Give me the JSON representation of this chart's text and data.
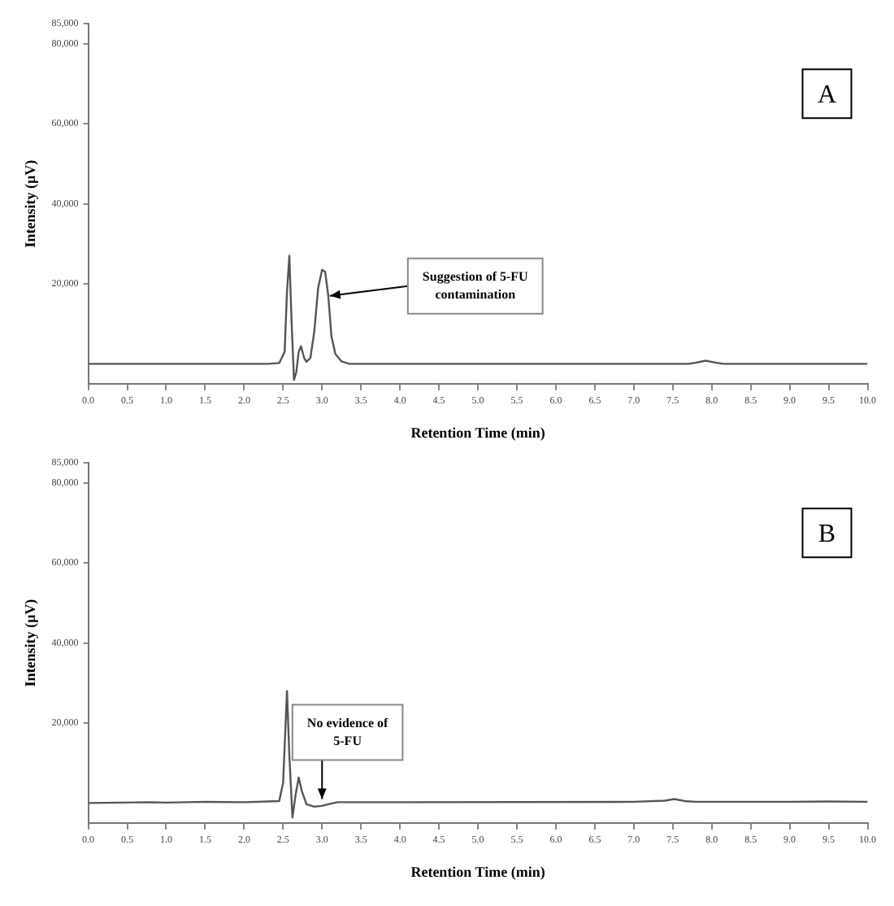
{
  "chart_data": [
    {
      "type": "line",
      "xlabel": "Retention Time (min)",
      "ylabel": "Intensity (µV)",
      "xlim": [
        0,
        10
      ],
      "ylim": [
        -5000,
        85000
      ],
      "xticks": [
        {
          "value": 0,
          "label": "0.0"
        },
        {
          "value": 0.5,
          "label": "0.5"
        },
        {
          "value": 1,
          "label": "1.0"
        },
        {
          "value": 1.5,
          "label": "1.5"
        },
        {
          "value": 2,
          "label": "2.0"
        },
        {
          "value": 2.5,
          "label": "2.5"
        },
        {
          "value": 3,
          "label": "3.0"
        },
        {
          "value": 3.5,
          "label": "3.5"
        },
        {
          "value": 4,
          "label": "4.0"
        },
        {
          "value": 4.5,
          "label": "4.5"
        },
        {
          "value": 5,
          "label": "5.0"
        },
        {
          "value": 5.5,
          "label": "5.5"
        },
        {
          "value": 6,
          "label": "6.0"
        },
        {
          "value": 6.5,
          "label": "6.5"
        },
        {
          "value": 7,
          "label": "7.0"
        },
        {
          "value": 7.5,
          "label": "7.5"
        },
        {
          "value": 8,
          "label": "8.0"
        },
        {
          "value": 8.5,
          "label": "8.5"
        },
        {
          "value": 9,
          "label": "9.0"
        },
        {
          "value": 9.5,
          "label": "9.5"
        },
        {
          "value": 10,
          "label": "10.0"
        }
      ],
      "yticks": [
        {
          "value": 20000,
          "label": "20,000"
        },
        {
          "value": 40000,
          "label": "40,000"
        },
        {
          "value": 60000,
          "label": "60,000"
        },
        {
          "value": 80000,
          "label": "80,000"
        },
        {
          "value": 85000,
          "label": "85,000"
        }
      ],
      "grid": false,
      "legend": false,
      "marker": "none",
      "line_style": "solid",
      "series": [
        {
          "color": "#555555",
          "x": [
            0,
            2.3,
            2.45,
            2.52,
            2.55,
            2.58,
            2.61,
            2.64,
            2.67,
            2.7,
            2.73,
            2.77,
            2.8,
            2.85,
            2.9,
            2.95,
            3,
            3.04,
            3.08,
            3.12,
            3.17,
            3.25,
            3.35,
            7.7,
            7.8,
            7.92,
            8.05,
            8.15,
            10
          ],
          "values": [
            0,
            0,
            200,
            3000,
            18000,
            27000,
            10000,
            -4000,
            -2000,
            3000,
            4400,
            1500,
            500,
            1500,
            8000,
            19000,
            23500,
            23000,
            17000,
            7000,
            2500,
            600,
            0,
            0,
            300,
            800,
            300,
            0,
            0
          ]
        }
      ],
      "annotations": [
        "A",
        {
          "text": "Suggestion of 5-FU contamination",
          "x": 3.1,
          "y": 17000
        }
      ]
    },
    {
      "type": "line",
      "xlabel": "Retention Time (min)",
      "ylabel": "Intensity (µV)",
      "xlim": [
        0,
        10
      ],
      "ylim": [
        -5000,
        85000
      ],
      "xticks": [
        {
          "value": 0,
          "label": "0.0"
        },
        {
          "value": 0.5,
          "label": "0.5"
        },
        {
          "value": 1,
          "label": "1.0"
        },
        {
          "value": 1.5,
          "label": "1.5"
        },
        {
          "value": 2,
          "label": "2.0"
        },
        {
          "value": 2.5,
          "label": "2.5"
        },
        {
          "value": 3,
          "label": "3.0"
        },
        {
          "value": 3.5,
          "label": "3.5"
        },
        {
          "value": 4,
          "label": "4.0"
        },
        {
          "value": 4.5,
          "label": "4.5"
        },
        {
          "value": 5,
          "label": "5.0"
        },
        {
          "value": 5.5,
          "label": "5.5"
        },
        {
          "value": 6,
          "label": "6.0"
        },
        {
          "value": 6.5,
          "label": "6.5"
        },
        {
          "value": 7,
          "label": "7.0"
        },
        {
          "value": 7.5,
          "label": "7.5"
        },
        {
          "value": 8,
          "label": "8.0"
        },
        {
          "value": 8.5,
          "label": "8.5"
        },
        {
          "value": 9,
          "label": "9.0"
        },
        {
          "value": 9.5,
          "label": "9.5"
        },
        {
          "value": 10,
          "label": "10.0"
        }
      ],
      "yticks": [
        {
          "value": 20000,
          "label": "20,000"
        },
        {
          "value": 40000,
          "label": "40,000"
        },
        {
          "value": 60000,
          "label": "60,000"
        },
        {
          "value": 80000,
          "label": "80,000"
        },
        {
          "value": 85000,
          "label": "85,000"
        }
      ],
      "grid": false,
      "legend": false,
      "marker": "none",
      "line_style": "solid",
      "series": [
        {
          "color": "#555555",
          "x": [
            0,
            0.8,
            1,
            1.5,
            2,
            2.45,
            2.5,
            2.55,
            2.58,
            2.62,
            2.66,
            2.7,
            2.74,
            2.8,
            2.9,
            3,
            3.1,
            3.2,
            4,
            7,
            7.4,
            7.52,
            7.65,
            7.8,
            9,
            9.5,
            10
          ],
          "values": [
            0,
            200,
            100,
            300,
            200,
            500,
            5000,
            28000,
            12000,
            -3600,
            2000,
            6400,
            3000,
            -300,
            -900,
            -700,
            -200,
            200,
            200,
            300,
            600,
            1000,
            500,
            300,
            300,
            400,
            300
          ]
        }
      ],
      "annotations": [
        "B",
        {
          "text": "No evidence of 5-FU",
          "x": 3,
          "y": 1000
        }
      ]
    }
  ]
}
